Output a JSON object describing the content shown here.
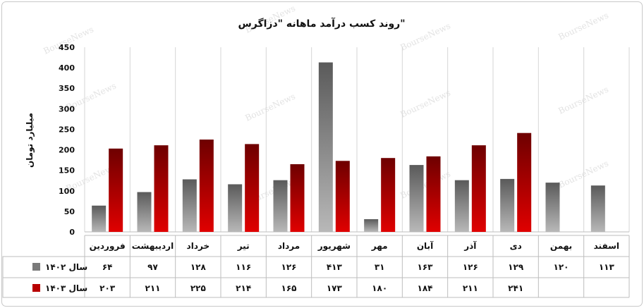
{
  "chart_data": {
    "type": "bar",
    "title": "روند کسب درآمد ماهانه \"دزاگرس\"",
    "ylabel": "میلیارد تومان",
    "ylim": [
      0,
      450
    ],
    "yticks": [
      "0",
      "50",
      "100",
      "150",
      "200",
      "250",
      "300",
      "350",
      "400",
      "450"
    ],
    "grid": true,
    "legend": "table-left",
    "watermark": "BourseNews",
    "categories": [
      "فروردین",
      "اردیبهشت",
      "خرداد",
      "تیر",
      "مرداد",
      "شهریور",
      "مهر",
      "آبان",
      "آذر",
      "دی",
      "بهمن",
      "اسفند"
    ],
    "series": [
      {
        "name": "سال ۱۴۰۲",
        "color": "#7a7a7a",
        "values": [
          64,
          97,
          128,
          116,
          126,
          413,
          31,
          163,
          126,
          129,
          120,
          113
        ],
        "labels": [
          "۶۴",
          "۹۷",
          "۱۲۸",
          "۱۱۶",
          "۱۲۶",
          "۴۱۳",
          "۳۱",
          "۱۶۳",
          "۱۲۶",
          "۱۲۹",
          "۱۲۰",
          "۱۱۳"
        ]
      },
      {
        "name": "سال ۱۴۰۳",
        "color": "#b80000",
        "values": [
          203,
          211,
          225,
          214,
          165,
          173,
          180,
          184,
          211,
          241,
          null,
          null
        ],
        "labels": [
          "۲۰۳",
          "۲۱۱",
          "۲۲۵",
          "۲۱۴",
          "۱۶۵",
          "۱۷۳",
          "۱۸۰",
          "۱۸۴",
          "۲۱۱",
          "۲۴۱",
          "",
          ""
        ]
      }
    ]
  }
}
